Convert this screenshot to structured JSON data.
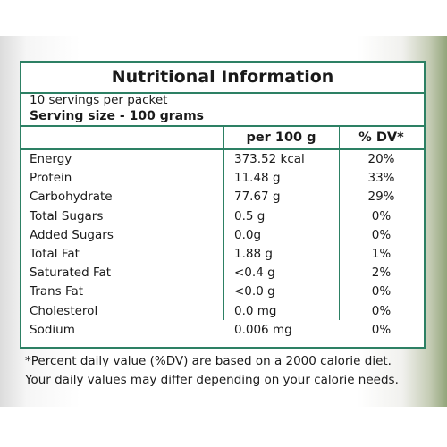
{
  "label": {
    "title": "Nutritional Information",
    "servings_per_packet": "10 servings per packet",
    "serving_size": "Serving size - 100 grams",
    "columns": {
      "per_100g": "per 100 g",
      "dv": "% DV*"
    },
    "rows": [
      {
        "name": "Energy",
        "amount": "373.52 kcal",
        "dv": "20%"
      },
      {
        "name": "Protein",
        "amount": "11.48 g",
        "dv": "33%"
      },
      {
        "name": "Carbohydrate",
        "amount": "77.67 g",
        "dv": "29%"
      },
      {
        "name": "Total Sugars",
        "amount": "0.5 g",
        "dv": "0%"
      },
      {
        "name": "Added Sugars",
        "amount": "0.0g",
        "dv": "0%"
      },
      {
        "name": "Total Fat",
        "amount": "1.88 g",
        "dv": "1%"
      },
      {
        "name": "Saturated Fat",
        "amount": "<0.4 g",
        "dv": "2%"
      },
      {
        "name": "Trans Fat",
        "amount": "<0.0 g",
        "dv": "0%"
      },
      {
        "name": "Cholesterol",
        "amount": "0.0 mg",
        "dv": "0%"
      },
      {
        "name": "Sodium",
        "amount": "0.006 mg",
        "dv": "0%"
      }
    ],
    "footnote_line1": "*Percent daily value (%DV) are based on a 2000 calorie diet.",
    "footnote_line2": "Your daily values may differ depending on your calorie needs."
  },
  "colors": {
    "border": "#2d8064",
    "text": "#1a1a1a",
    "background": "#ffffff",
    "edge_tint": "#93a57b"
  }
}
